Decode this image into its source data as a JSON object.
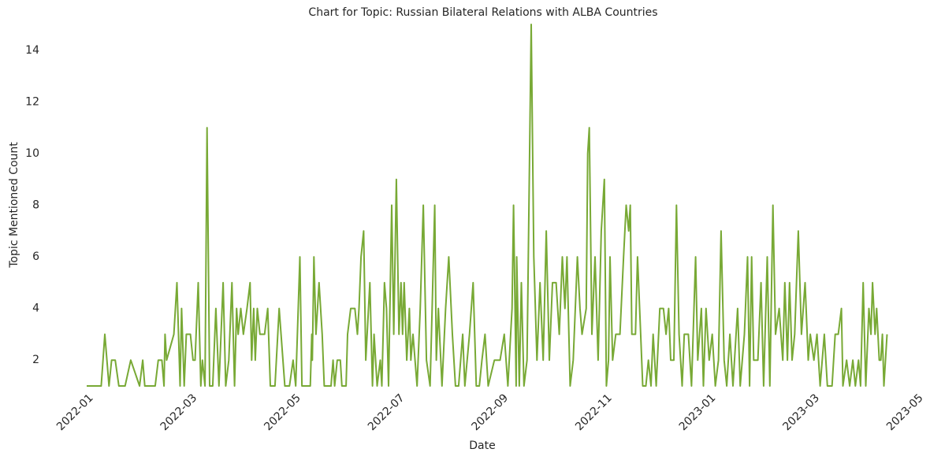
{
  "chart_data": {
    "type": "line",
    "title": "Chart for Topic: Russian Bilateral Relations with ALBA Countries",
    "xlabel": "Date",
    "ylabel": "Topic Mentioned Count",
    "x": [
      0,
      0.28,
      0.35,
      0.43,
      0.48,
      0.55,
      0.62,
      0.74,
      0.85,
      1.02,
      1.08,
      1.12,
      1.32,
      1.38,
      1.45,
      1.49,
      1.51,
      1.54,
      1.68,
      1.74,
      1.8,
      1.83,
      1.88,
      1.92,
      2.0,
      2.05,
      2.09,
      2.15,
      2.2,
      2.23,
      2.28,
      2.32,
      2.37,
      2.43,
      2.49,
      2.55,
      2.63,
      2.68,
      2.74,
      2.8,
      2.85,
      2.89,
      2.92,
      2.97,
      3.02,
      3.09,
      3.15,
      3.18,
      3.22,
      3.25,
      3.29,
      3.34,
      3.43,
      3.49,
      3.54,
      3.63,
      3.71,
      3.82,
      3.91,
      3.98,
      4.03,
      4.11,
      4.15,
      4.31,
      4.34,
      4.35,
      4.38,
      4.42,
      4.48,
      4.54,
      4.58,
      4.71,
      4.75,
      4.78,
      4.83,
      4.89,
      4.92,
      5.0,
      5.03,
      5.09,
      5.17,
      5.22,
      5.25,
      5.29,
      5.34,
      5.38,
      5.46,
      5.51,
      5.54,
      5.6,
      5.66,
      5.69,
      5.74,
      5.78,
      5.82,
      5.88,
      5.92,
      5.97,
      6.02,
      6.06,
      6.09,
      6.12,
      6.17,
      6.22,
      6.25,
      6.29,
      6.37,
      6.43,
      6.49,
      6.55,
      6.62,
      6.66,
      6.71,
      6.74,
      6.78,
      6.85,
      6.92,
      6.98,
      7.05,
      7.11,
      7.17,
      7.25,
      7.29,
      7.38,
      7.45,
      7.51,
      7.57,
      7.62,
      7.68,
      7.74,
      7.86,
      7.97,
      8.05,
      8.12,
      8.2,
      8.23,
      8.28,
      8.29,
      8.34,
      8.38,
      8.43,
      8.49,
      8.57,
      8.62,
      8.68,
      8.74,
      8.8,
      8.86,
      8.92,
      8.98,
      9.05,
      9.11,
      9.17,
      9.22,
      9.26,
      9.32,
      9.38,
      9.46,
      9.51,
      9.55,
      9.63,
      9.66,
      9.69,
      9.74,
      9.8,
      9.86,
      9.92,
      9.98,
      10.02,
      10.06,
      10.09,
      10.14,
      10.2,
      10.28,
      10.35,
      10.4,
      10.45,
      10.48,
      10.51,
      10.58,
      10.62,
      10.68,
      10.72,
      10.78,
      10.83,
      10.88,
      10.92,
      10.98,
      11.05,
      11.12,
      11.17,
      11.22,
      11.26,
      11.32,
      11.37,
      11.42,
      11.48,
      11.52,
      11.6,
      11.66,
      11.74,
      11.78,
      11.85,
      11.89,
      11.94,
      12.0,
      12.06,
      12.12,
      12.18,
      12.23,
      12.29,
      12.34,
      12.4,
      12.46,
      12.55,
      12.6,
      12.68,
      12.74,
      12.78,
      12.82,
      12.86,
      12.94,
      13.0,
      13.05,
      13.12,
      13.17,
      13.23,
      13.28,
      13.35,
      13.42,
      13.46,
      13.51,
      13.55,
      13.6,
      13.65,
      13.72,
      13.78,
      13.85,
      13.91,
      13.95,
      14.02,
      14.08,
      14.14,
      14.22,
      14.28,
      14.37,
      14.43,
      14.49,
      14.55,
      14.58,
      14.65,
      14.71,
      14.77,
      14.82,
      14.88,
      14.92,
      14.97,
      15.02,
      15.08,
      15.12,
      15.15,
      15.2,
      15.23,
      15.28,
      15.31,
      15.34,
      15.37,
      15.4,
      15.43
    ],
    "series": [
      {
        "color": "#78a935",
        "values": [
          1,
          1,
          3,
          1,
          2,
          2,
          1,
          1,
          2,
          1,
          2,
          1,
          1,
          2,
          2,
          1,
          3,
          2,
          3,
          5,
          1,
          4,
          1,
          3,
          3,
          2,
          2,
          5,
          1,
          2,
          1,
          11,
          1,
          1,
          4,
          1,
          5,
          1,
          2,
          5,
          1,
          4,
          3,
          4,
          3,
          4,
          5,
          2,
          4,
          2,
          4,
          3,
          3,
          4,
          1,
          1,
          4,
          1,
          1,
          2,
          1,
          6,
          1,
          1,
          3,
          2,
          6,
          3,
          5,
          3,
          1,
          1,
          2,
          1,
          2,
          2,
          1,
          1,
          3,
          4,
          4,
          3,
          4,
          6,
          7,
          2,
          5,
          1,
          3,
          1,
          2,
          1,
          5,
          4,
          1,
          8,
          3,
          9,
          3,
          5,
          3,
          5,
          2,
          4,
          2,
          3,
          1,
          4,
          8,
          2,
          1,
          4,
          8,
          2,
          4,
          1,
          4,
          6,
          3,
          1,
          1,
          3,
          1,
          3,
          5,
          1,
          1,
          2,
          3,
          1,
          2,
          2,
          3,
          1,
          4,
          8,
          1,
          6,
          1,
          5,
          1,
          2,
          15,
          6,
          2,
          5,
          2,
          7,
          2,
          5,
          5,
          3,
          6,
          4,
          6,
          1,
          2,
          6,
          4,
          3,
          4,
          10,
          11,
          3,
          6,
          2,
          7,
          9,
          1,
          2,
          6,
          2,
          3,
          3,
          6,
          8,
          7,
          8,
          3,
          3,
          6,
          3,
          1,
          1,
          2,
          1,
          3,
          1,
          4,
          4,
          3,
          4,
          2,
          2,
          8,
          3,
          1,
          3,
          3,
          1,
          6,
          2,
          4,
          1,
          4,
          2,
          3,
          1,
          2,
          7,
          2,
          1,
          3,
          1,
          4,
          1,
          3,
          6,
          1,
          6,
          2,
          2,
          5,
          1,
          6,
          1,
          8,
          3,
          4,
          2,
          5,
          2,
          5,
          2,
          3,
          7,
          3,
          5,
          2,
          3,
          2,
          3,
          1,
          3,
          1,
          1,
          3,
          3,
          4,
          1,
          2,
          1,
          2,
          1,
          2,
          1,
          5,
          1,
          4,
          3,
          5,
          3,
          4,
          2,
          2,
          3,
          1,
          2,
          3
        ]
      }
    ],
    "xlim": [
      0,
      16
    ],
    "xticks": [
      {
        "value": 0,
        "label": "2022-01"
      },
      {
        "value": 2,
        "label": "2022-03"
      },
      {
        "value": 4,
        "label": "2022-05"
      },
      {
        "value": 6,
        "label": "2022-07"
      },
      {
        "value": 8,
        "label": "2022-09"
      },
      {
        "value": 10,
        "label": "2022-11"
      },
      {
        "value": 12,
        "label": "2023-01"
      },
      {
        "value": 14,
        "label": "2023-03"
      },
      {
        "value": 16,
        "label": "2023-05"
      }
    ],
    "ylim": [
      1,
      15
    ],
    "yticks": [
      2,
      4,
      6,
      8,
      10,
      12,
      14
    ],
    "grid": false
  }
}
